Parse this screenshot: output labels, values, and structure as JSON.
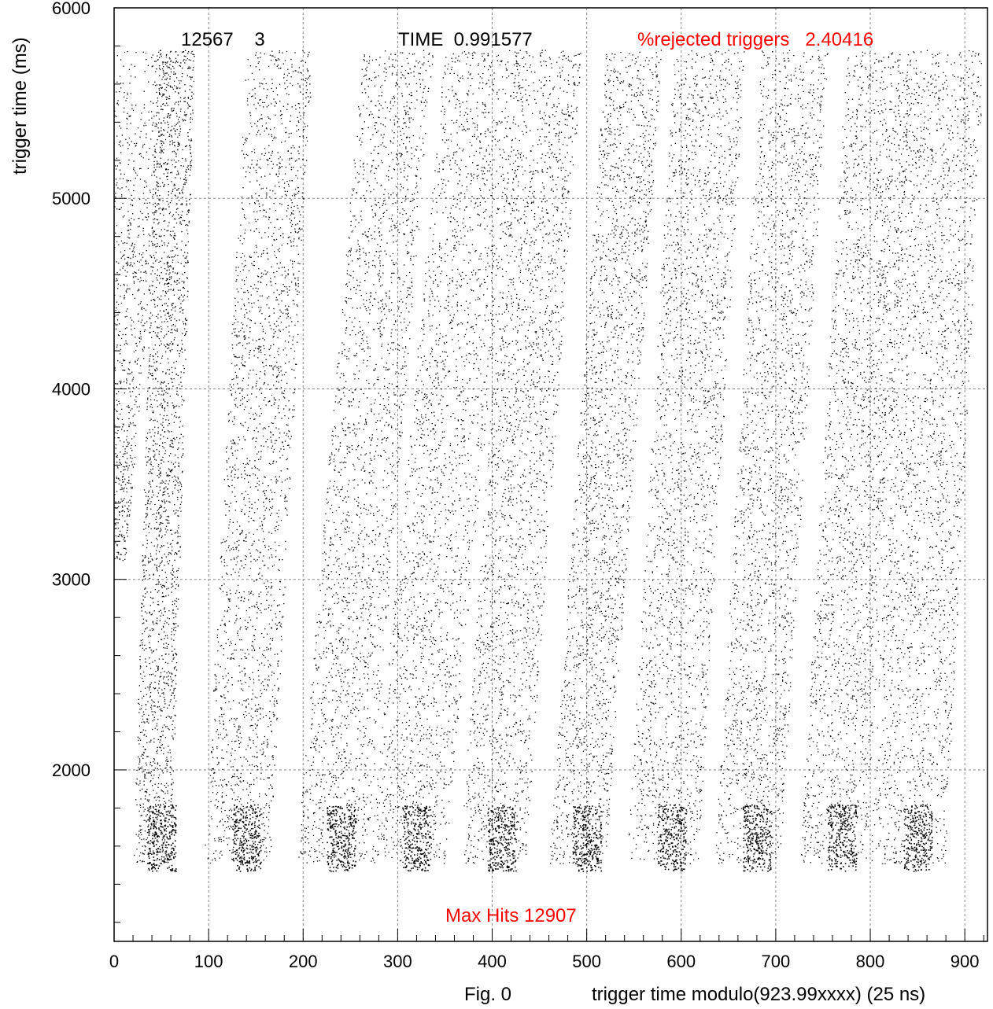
{
  "chart_data": {
    "type": "scatter",
    "xlim": [
      0,
      924
    ],
    "ylim": [
      1100,
      6000
    ],
    "x_ticks": [
      0,
      100,
      200,
      300,
      400,
      500,
      600,
      700,
      800,
      900
    ],
    "x_tick_labels": [
      "0",
      "100",
      "200",
      "300",
      "400",
      "500",
      "600",
      "700",
      "800",
      "900"
    ],
    "y_ticks": [
      2000,
      3000,
      4000,
      5000,
      6000
    ],
    "y_tick_labels": [
      "2000",
      "3000",
      "4000",
      "5000",
      "6000"
    ],
    "xlabel": "trigger time modulo(923.99xxxx) (25 ns)",
    "ylabel": "trigger time (ms)",
    "grid": true,
    "point_color": "#000000",
    "bands": [
      {
        "x_start": 40,
        "x_end": 65,
        "x_width": 40
      },
      {
        "x_start": 130,
        "x_end": 175,
        "x_width": 70
      },
      {
        "x_start": 230,
        "x_end": 300,
        "x_width": 75
      },
      {
        "x_start": 310,
        "x_end": 390,
        "x_width": 80
      },
      {
        "x_start": 400,
        "x_end": 460,
        "x_width": 70
      },
      {
        "x_start": 490,
        "x_end": 550,
        "x_width": 60
      },
      {
        "x_start": 580,
        "x_end": 630,
        "x_width": 75
      },
      {
        "x_start": 670,
        "x_end": 720,
        "x_width": 70
      },
      {
        "x_start": 760,
        "x_end": 810,
        "x_width": 70
      },
      {
        "x_start": 840,
        "x_end": 880,
        "x_width": 80
      }
    ],
    "left_strip": {
      "x_start": 0,
      "x_end": 60,
      "y_top": 5780,
      "y_bottom": 3100
    }
  },
  "header": {
    "run_numbers": "12567    3",
    "time_label": "TIME  0.991577",
    "rejected_label": "%rejected triggers   2.40416"
  },
  "annotation": {
    "max_hits": "Max Hits 12907"
  },
  "footer": {
    "fig_label": "Fig. 0"
  },
  "colors": {
    "accent_red": "#ff0000",
    "axis": "#000000",
    "grid": "#888888"
  }
}
